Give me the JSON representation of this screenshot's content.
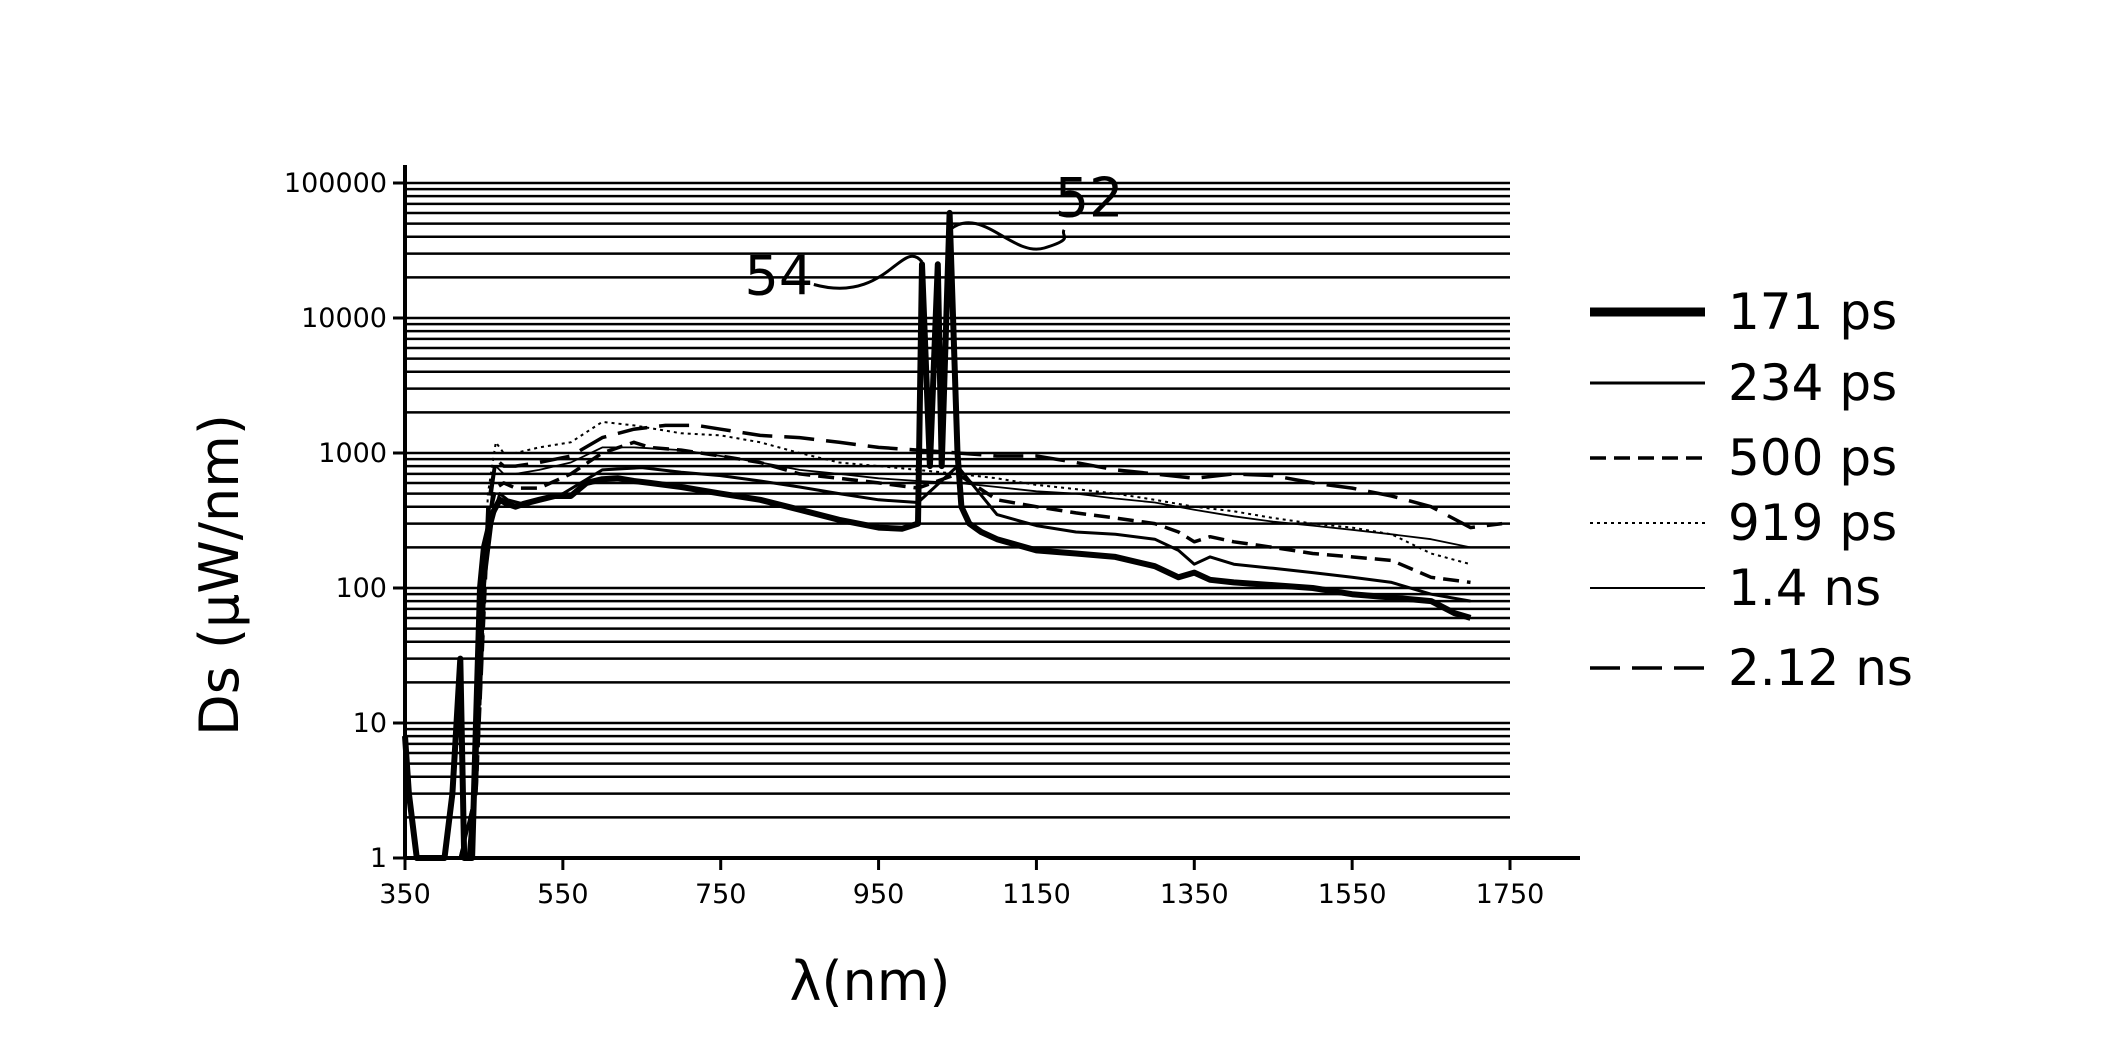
{
  "chart_data": {
    "type": "line",
    "title": "",
    "xlabel": "λ(nm)",
    "ylabel": "Ds (μW/nm)",
    "xlim": [
      350,
      1750
    ],
    "ylim": [
      1,
      100000
    ],
    "y_scale": "log",
    "grid": true,
    "legend_position": "right",
    "x_ticks": [
      "350",
      "550",
      "750",
      "950",
      "1150",
      "1350",
      "1550",
      "1750"
    ],
    "y_ticks": [
      "1",
      "10",
      "100",
      "1000",
      "10000",
      "100000"
    ],
    "annotations": [
      {
        "text": "54",
        "x": 925,
        "y": 21000
      },
      {
        "text": "52",
        "x": 1185,
        "y": 37000
      }
    ],
    "series": [
      {
        "name": "171 ps",
        "style": "thick-solid",
        "x": [
          350,
          355,
          365,
          400,
          410,
          420,
          425,
          435,
          440,
          445,
          450,
          460,
          470,
          480,
          490,
          500,
          520,
          540,
          560,
          580,
          600,
          620,
          640,
          660,
          700,
          750,
          800,
          850,
          900,
          950,
          980,
          1000,
          1005,
          1015,
          1025,
          1030,
          1040,
          1050,
          1055,
          1065,
          1080,
          1100,
          1150,
          1200,
          1250,
          1300,
          1330,
          1350,
          1370,
          1400,
          1450,
          1500,
          1550,
          1600,
          1650,
          1680,
          1700
        ],
        "y": [
          8,
          3,
          1,
          1,
          3,
          30,
          1,
          1,
          10,
          100,
          200,
          350,
          450,
          420,
          400,
          420,
          450,
          480,
          480,
          600,
          640,
          650,
          620,
          600,
          560,
          500,
          450,
          380,
          320,
          280,
          275,
          300,
          25000,
          800,
          25000,
          800,
          60000,
          1000,
          400,
          300,
          260,
          230,
          190,
          180,
          170,
          145,
          120,
          130,
          115,
          110,
          105,
          100,
          90,
          85,
          80,
          65,
          60
        ]
      },
      {
        "name": "234 ps",
        "style": "solid",
        "x": [
          350,
          400,
          430,
          440,
          450,
          460,
          470,
          480,
          500,
          550,
          600,
          650,
          700,
          750,
          800,
          850,
          900,
          950,
          1000,
          1050,
          1100,
          1150,
          1200,
          1250,
          1300,
          1330,
          1350,
          1370,
          1400,
          1450,
          1500,
          1550,
          1600,
          1650,
          1700
        ],
        "y": [
          1,
          1,
          1,
          5,
          100,
          300,
          500,
          450,
          420,
          500,
          750,
          780,
          720,
          680,
          620,
          560,
          500,
          450,
          430,
          800,
          350,
          290,
          260,
          250,
          230,
          190,
          150,
          170,
          150,
          140,
          130,
          120,
          110,
          90,
          80
        ]
      },
      {
        "name": "500 ps",
        "style": "dashed",
        "x": [
          350,
          420,
          440,
          455,
          465,
          475,
          490,
          520,
          560,
          600,
          640,
          660,
          700,
          750,
          800,
          850,
          900,
          950,
          1000,
          1050,
          1100,
          1150,
          1200,
          1250,
          1300,
          1330,
          1350,
          1370,
          1400,
          1450,
          1500,
          1550,
          1600,
          1650,
          1700
        ],
        "y": [
          1,
          1,
          3,
          300,
          550,
          600,
          550,
          550,
          700,
          1000,
          1200,
          1100,
          1050,
          950,
          850,
          700,
          650,
          600,
          550,
          700,
          450,
          400,
          360,
          330,
          300,
          260,
          220,
          240,
          220,
          200,
          180,
          170,
          160,
          120,
          110
        ]
      },
      {
        "name": "919 ps",
        "style": "dotted",
        "x": [
          350,
          420,
          440,
          455,
          465,
          475,
          490,
          520,
          560,
          600,
          640,
          700,
          750,
          800,
          850,
          900,
          950,
          1000,
          1050,
          1100,
          1150,
          1200,
          1250,
          1300,
          1350,
          1400,
          1450,
          1500,
          1550,
          1600,
          1650,
          1700
        ],
        "y": [
          1,
          1,
          3,
          500,
          1200,
          1000,
          1000,
          1100,
          1200,
          1700,
          1600,
          1400,
          1350,
          1200,
          1000,
          850,
          800,
          750,
          700,
          650,
          580,
          540,
          500,
          450,
          400,
          370,
          330,
          300,
          280,
          250,
          180,
          150
        ]
      },
      {
        "name": "1.4 ns",
        "style": "thin-solid",
        "x": [
          350,
          420,
          440,
          455,
          465,
          475,
          490,
          520,
          560,
          600,
          640,
          700,
          750,
          800,
          850,
          900,
          950,
          1000,
          1050,
          1100,
          1150,
          1200,
          1250,
          1300,
          1350,
          1400,
          1450,
          1500,
          1550,
          1600,
          1650,
          1700
        ],
        "y": [
          1,
          1,
          3,
          300,
          800,
          700,
          700,
          750,
          850,
          1100,
          1100,
          1050,
          950,
          850,
          750,
          700,
          650,
          620,
          600,
          560,
          520,
          500,
          460,
          430,
          380,
          340,
          310,
          290,
          270,
          250,
          230,
          200
        ]
      },
      {
        "name": "2.12 ns",
        "style": "long-dashed",
        "x": [
          350,
          420,
          440,
          455,
          465,
          475,
          490,
          520,
          560,
          600,
          640,
          680,
          720,
          750,
          800,
          850,
          900,
          950,
          1000,
          1050,
          1100,
          1150,
          1200,
          1250,
          1300,
          1350,
          1400,
          1450,
          1500,
          1550,
          1600,
          1650,
          1700,
          1740
        ],
        "y": [
          1,
          1,
          3,
          400,
          900,
          800,
          800,
          850,
          950,
          1300,
          1500,
          1600,
          1600,
          1500,
          1350,
          1300,
          1200,
          1100,
          1050,
          1000,
          950,
          950,
          850,
          750,
          700,
          650,
          700,
          680,
          600,
          550,
          480,
          400,
          280,
          300
        ]
      }
    ]
  }
}
